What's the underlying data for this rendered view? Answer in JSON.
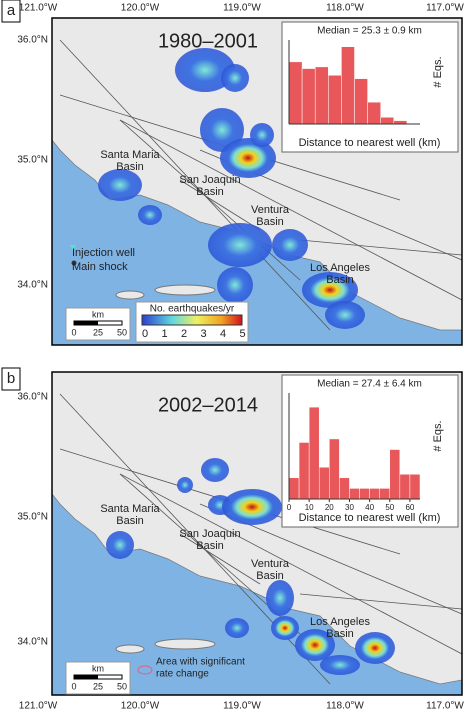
{
  "chart_data": [
    {
      "type": "histogram",
      "title": "Median = 25.3 ± 0.9 km",
      "xlabel": "Distance to nearest well (km)",
      "ylabel": "# Eqs.",
      "bins": [
        0,
        7,
        14,
        21,
        28,
        35,
        42,
        49,
        56,
        63
      ],
      "values": [
        37,
        33,
        34,
        29,
        46,
        27,
        13,
        4,
        2
      ],
      "color": "#e8585b",
      "xlim": [
        0,
        70
      ],
      "ylim": [
        0,
        50
      ]
    },
    {
      "type": "histogram",
      "title": "Median = 27.4 ± 6.4 km",
      "xlabel": "Distance to nearest well (km)",
      "ylabel": "# Eqs.",
      "bins": [
        0,
        5,
        10,
        15,
        20,
        25,
        30,
        35,
        40,
        45,
        50,
        55,
        60,
        65
      ],
      "values": [
        6,
        16,
        26,
        9,
        17,
        6,
        3,
        3,
        3,
        3,
        14,
        7,
        7
      ],
      "color": "#e8585b",
      "xlim": [
        0,
        65
      ],
      "ylim": [
        0,
        30
      ],
      "xticks": [
        0,
        10,
        20,
        30,
        40,
        50,
        60
      ]
    }
  ],
  "panels": [
    {
      "label": "a",
      "period": "1980–2001",
      "lon_labels": [
        "121.0°W",
        "120.0°W",
        "119.0°W",
        "118.0°W",
        "117.0°W"
      ],
      "lat_labels": [
        "36.0°N",
        "35.0°N",
        "34.0°N"
      ],
      "basins": [
        "Santa Maria Basin",
        "San Joaquin Basin",
        "Ventura Basin",
        "Los Angeles Basin"
      ],
      "legend": [
        "Injection well",
        "Main shock"
      ],
      "scale_unit": "km",
      "scale_ticks": [
        0,
        25,
        50
      ],
      "colorbar_title": "No. earthquakes/yr",
      "colorbar_ticks": [
        0,
        1,
        2,
        3,
        4,
        5
      ]
    },
    {
      "label": "b",
      "period": "2002–2014",
      "lon_labels": [
        "121.0°W",
        "120.0°W",
        "119.0°W",
        "118.0°W",
        "117.0°W"
      ],
      "lat_labels": [
        "36.0°N",
        "35.0°N",
        "34.0°N"
      ],
      "basins": [
        "Santa Maria Basin",
        "San Joaquin Basin",
        "Ventura Basin",
        "Los Angeles Basin"
      ],
      "legend": [
        "Area with significant rate change"
      ],
      "scale_unit": "km",
      "scale_ticks": [
        0,
        25,
        50
      ]
    }
  ]
}
